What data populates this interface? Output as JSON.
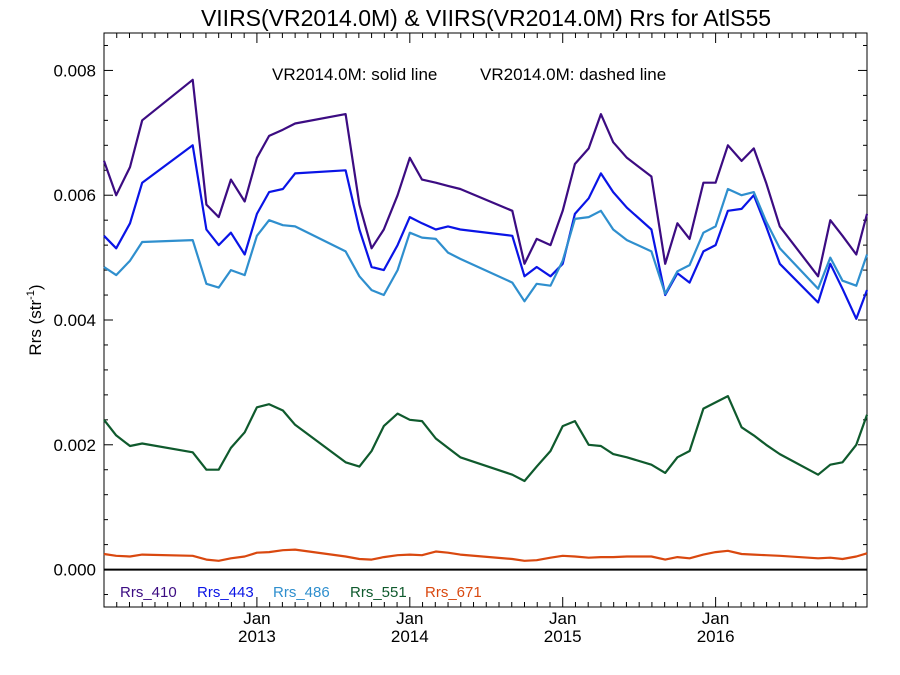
{
  "chart_data": {
    "type": "line",
    "title": "VIIRS(VR2014.0M) & VIIRS(VR2014.0M)  Rrs for AtlS55",
    "annotation_solid": "VR2014.0M: solid line",
    "annotation_dashed": "VR2014.0M: dashed line",
    "ylabel_main": "Rrs (str",
    "ylabel_sup": "-1",
    "ylabel_close": ")",
    "ylim": [
      -0.0006,
      0.0086
    ],
    "xlim": [
      2012.0,
      2016.99
    ],
    "yticks": [
      {
        "value": 0.0,
        "label": "0.000"
      },
      {
        "value": 0.002,
        "label": "0.002"
      },
      {
        "value": 0.004,
        "label": "0.004"
      },
      {
        "value": 0.006,
        "label": "0.006"
      },
      {
        "value": 0.008,
        "label": "0.008"
      }
    ],
    "xticks": [
      {
        "value": 2013.0,
        "month": "Jan",
        "year": "2013"
      },
      {
        "value": 2014.0,
        "month": "Jan",
        "year": "2014"
      },
      {
        "value": 2015.0,
        "month": "Jan",
        "year": "2015"
      },
      {
        "value": 2016.0,
        "month": "Jan",
        "year": "2016"
      }
    ],
    "x": [
      2012.0,
      2012.08,
      2012.17,
      2012.25,
      2012.58,
      2012.67,
      2012.75,
      2012.83,
      2012.92,
      2013.0,
      2013.08,
      2013.17,
      2013.25,
      2013.58,
      2013.67,
      2013.75,
      2013.83,
      2013.92,
      2014.0,
      2014.08,
      2014.17,
      2014.25,
      2014.33,
      2014.67,
      2014.75,
      2014.83,
      2014.92,
      2015.0,
      2015.08,
      2015.17,
      2015.25,
      2015.33,
      2015.42,
      2015.58,
      2015.67,
      2015.75,
      2015.83,
      2015.92,
      2016.0,
      2016.08,
      2016.17,
      2016.25,
      2016.33,
      2016.42,
      2016.67,
      2016.75,
      2016.83,
      2016.92,
      2016.99
    ],
    "series": [
      {
        "name": "Rrs_410",
        "color": "#3c0c82",
        "values": [
          0.00655,
          0.006,
          0.00645,
          0.0072,
          0.00785,
          0.00585,
          0.00565,
          0.00625,
          0.0059,
          0.0066,
          0.00695,
          0.00705,
          0.00715,
          0.0073,
          0.00585,
          0.00515,
          0.00545,
          0.006,
          0.0066,
          0.00625,
          0.0062,
          0.00615,
          0.0061,
          0.00575,
          0.0049,
          0.0053,
          0.0052,
          0.00575,
          0.0065,
          0.00675,
          0.0073,
          0.00685,
          0.0066,
          0.0063,
          0.0049,
          0.00555,
          0.0053,
          0.0062,
          0.0062,
          0.0068,
          0.00655,
          0.00675,
          0.0062,
          0.0055,
          0.0047,
          0.0056,
          0.00535,
          0.00505,
          0.0057
        ]
      },
      {
        "name": "Rrs_443",
        "color": "#0a14e6",
        "values": [
          0.00535,
          0.00515,
          0.00555,
          0.0062,
          0.0068,
          0.00545,
          0.0052,
          0.0054,
          0.00505,
          0.0057,
          0.00605,
          0.0061,
          0.00635,
          0.0064,
          0.00545,
          0.00485,
          0.0048,
          0.0052,
          0.00565,
          0.00555,
          0.00545,
          0.0055,
          0.00545,
          0.00535,
          0.0047,
          0.00485,
          0.0047,
          0.0049,
          0.0057,
          0.00595,
          0.00635,
          0.00605,
          0.0058,
          0.00545,
          0.0044,
          0.00475,
          0.0046,
          0.0051,
          0.0052,
          0.00575,
          0.00578,
          0.006,
          0.0055,
          0.0049,
          0.00428,
          0.0049,
          0.0045,
          0.00402,
          0.00448
        ]
      },
      {
        "name": "Rrs_486",
        "color": "#2f8fce",
        "values": [
          0.00485,
          0.00472,
          0.00495,
          0.00525,
          0.00528,
          0.00458,
          0.00452,
          0.0048,
          0.00472,
          0.00535,
          0.0056,
          0.00552,
          0.0055,
          0.0051,
          0.0047,
          0.00448,
          0.0044,
          0.0048,
          0.0054,
          0.00532,
          0.0053,
          0.00508,
          0.00498,
          0.0046,
          0.0043,
          0.00458,
          0.00455,
          0.00495,
          0.00562,
          0.00565,
          0.00575,
          0.00545,
          0.00528,
          0.0051,
          0.00442,
          0.00478,
          0.00488,
          0.0054,
          0.0055,
          0.0061,
          0.006,
          0.00605,
          0.00558,
          0.00515,
          0.0045,
          0.005,
          0.00463,
          0.00455,
          0.00505
        ]
      },
      {
        "name": "Rrs_551",
        "color": "#0f5a2d",
        "values": [
          0.0024,
          0.00215,
          0.00198,
          0.00202,
          0.00188,
          0.0016,
          0.0016,
          0.00195,
          0.0022,
          0.0026,
          0.00265,
          0.00255,
          0.00232,
          0.00172,
          0.00165,
          0.0019,
          0.0023,
          0.0025,
          0.0024,
          0.00238,
          0.0021,
          0.00195,
          0.0018,
          0.00152,
          0.00142,
          0.00165,
          0.0019,
          0.0023,
          0.00238,
          0.002,
          0.00198,
          0.00185,
          0.0018,
          0.00168,
          0.00155,
          0.0018,
          0.0019,
          0.00258,
          0.00268,
          0.00278,
          0.00228,
          0.00215,
          0.002,
          0.00185,
          0.00152,
          0.00168,
          0.00172,
          0.002,
          0.00248
        ]
      },
      {
        "name": "Rrs_671",
        "color": "#d9480f",
        "values": [
          0.00025,
          0.00022,
          0.00021,
          0.00024,
          0.00022,
          0.00016,
          0.00014,
          0.00018,
          0.00021,
          0.00027,
          0.00028,
          0.00031,
          0.00032,
          0.00021,
          0.00017,
          0.00016,
          0.0002,
          0.00023,
          0.00024,
          0.00023,
          0.00029,
          0.00027,
          0.00024,
          0.00017,
          0.00014,
          0.00015,
          0.00019,
          0.00022,
          0.00021,
          0.00019,
          0.0002,
          0.0002,
          0.00021,
          0.00021,
          0.00016,
          0.0002,
          0.00018,
          0.00024,
          0.00028,
          0.0003,
          0.00025,
          0.00024,
          0.00023,
          0.00022,
          0.00018,
          0.00019,
          0.00017,
          0.00021,
          0.00026
        ]
      }
    ]
  }
}
